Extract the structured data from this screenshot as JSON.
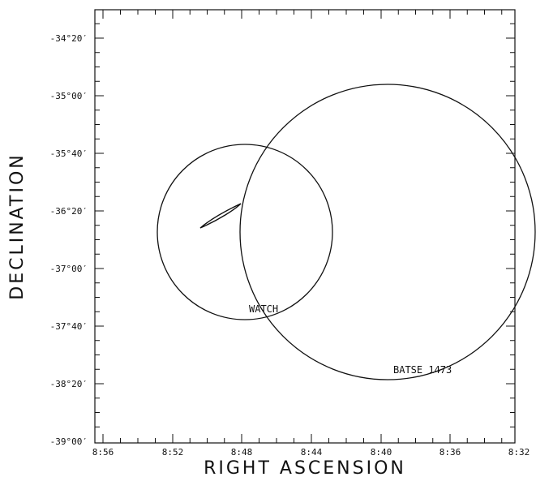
{
  "figure": {
    "xlabel": "RIGHT ASCENSION",
    "ylabel": "DECLINATION"
  },
  "axes": {
    "x_ticks": [
      "8:56",
      "8:52",
      "8:48",
      "8:44",
      "8:40",
      "8:36",
      "8:32"
    ],
    "y_ticks": [
      "-34°20′",
      "-35°00′",
      "-35°40′",
      "-36°20′",
      "-37°00′",
      "-37°40′",
      "-38°20′",
      "-39°00′"
    ]
  },
  "annotations": {
    "watch_label": "WATCH",
    "batse_label": "BATSE 1473"
  },
  "colors": {
    "ink": "#111111",
    "background": "#ffffff"
  }
}
